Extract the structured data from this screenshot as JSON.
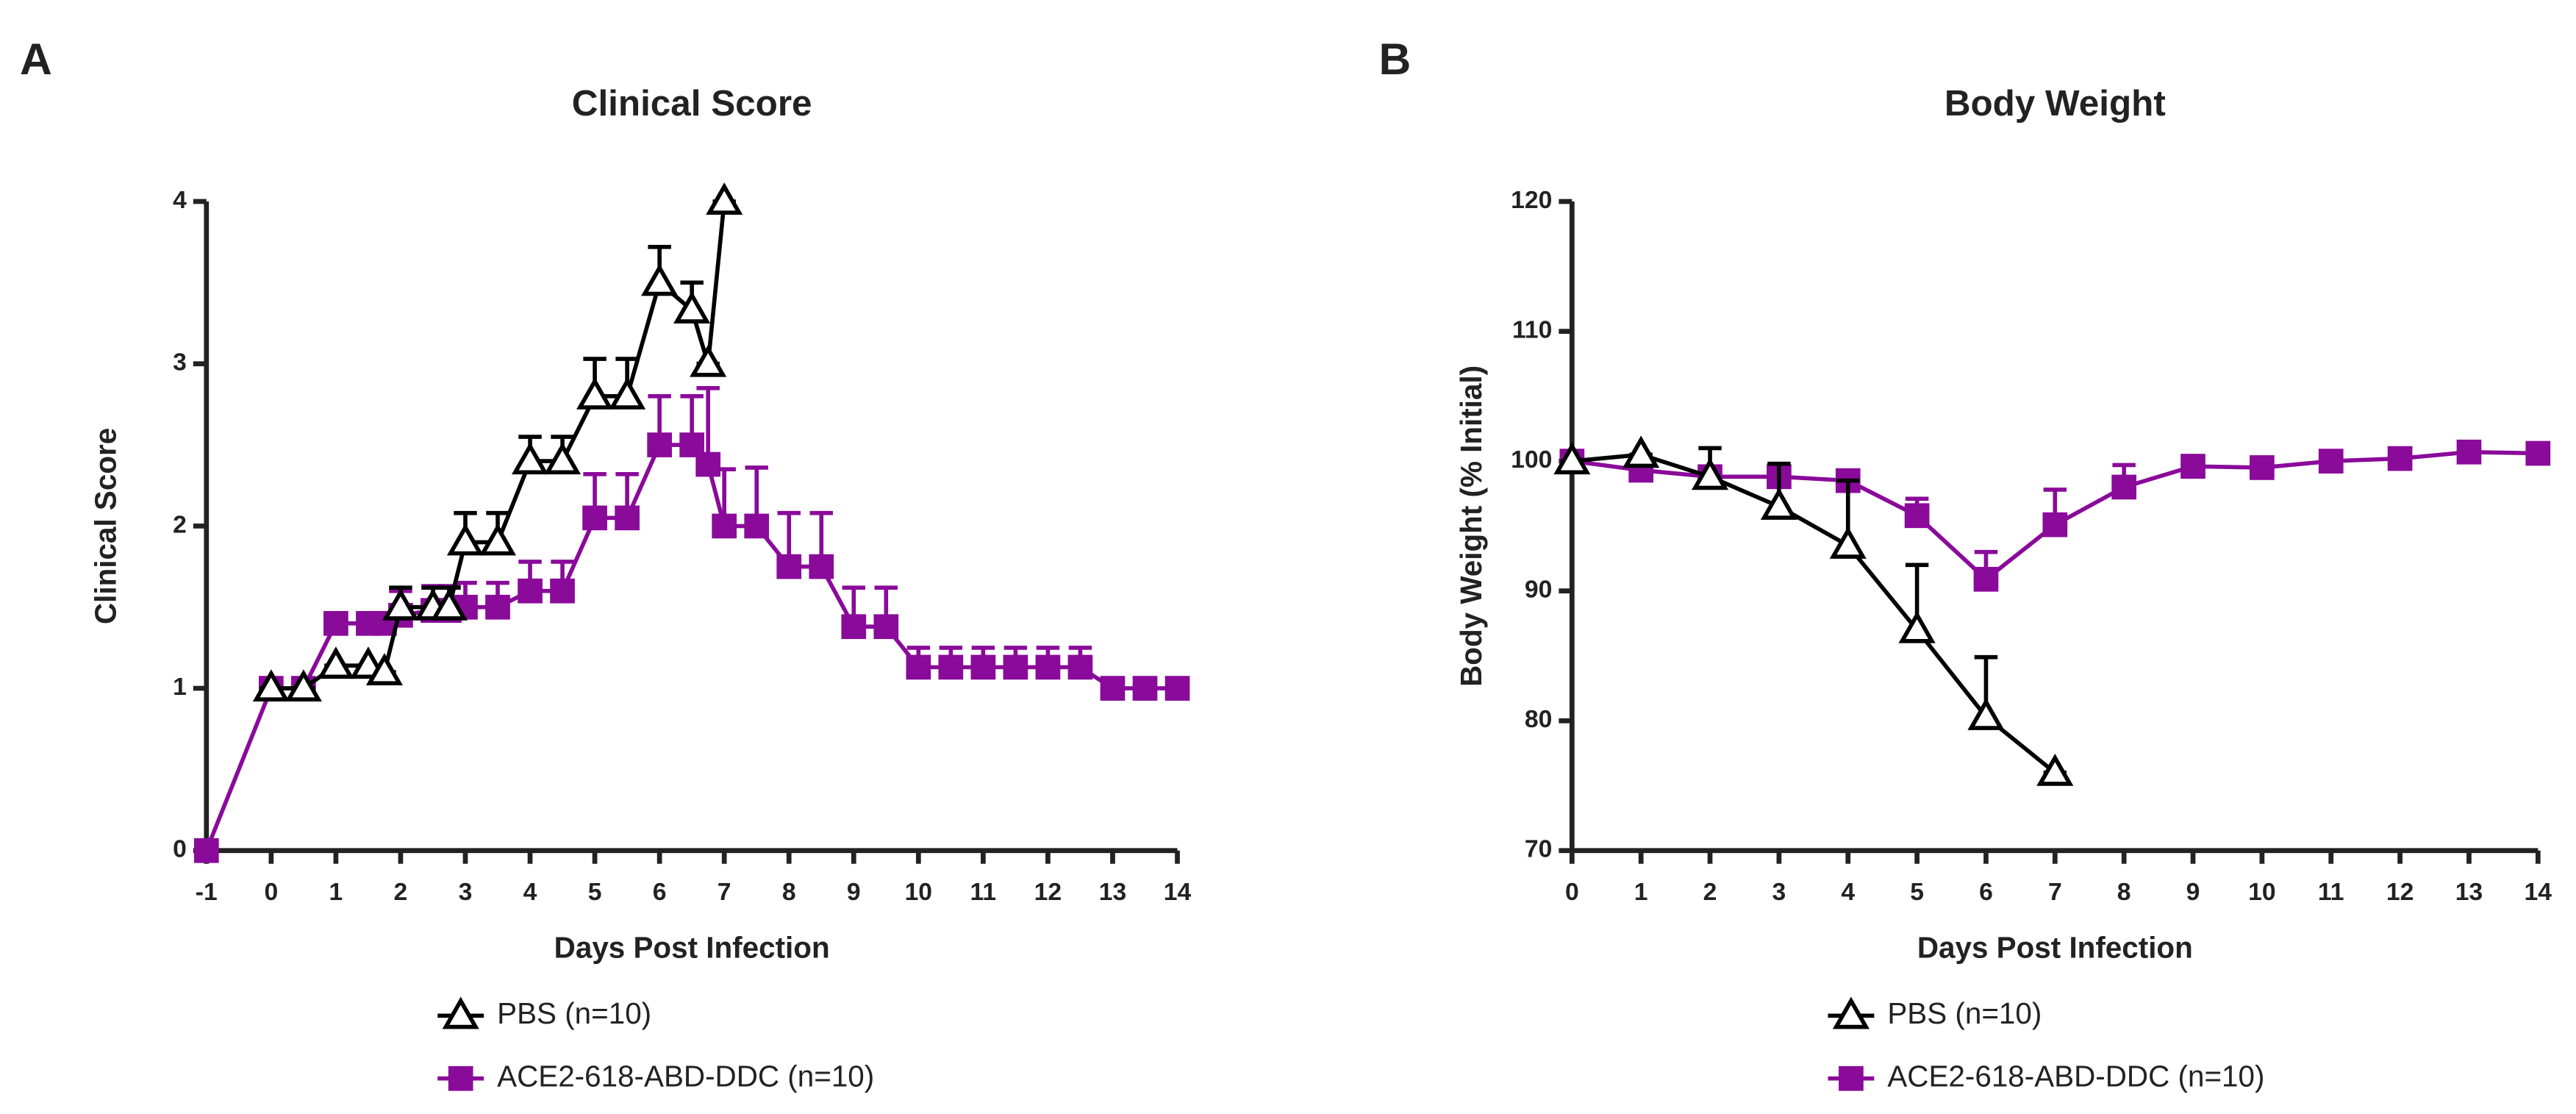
{
  "chart_data": [
    {
      "type": "line",
      "panel": "A",
      "title": "Clinical Score",
      "x_label": "Days Post Infection",
      "y_label": "Clinical Score",
      "x": [
        -1,
        0,
        0.5,
        1,
        1.5,
        1.75,
        2,
        2.5,
        2.75,
        3,
        3.5,
        4,
        4.5,
        5,
        5.5,
        6,
        6.5,
        6.75,
        7,
        7.5,
        8,
        8.5,
        9,
        9.5,
        10,
        10.5,
        11,
        11.5,
        12,
        12.5,
        13,
        13.5,
        14
      ],
      "xlim": [
        -1,
        14
      ],
      "xticks": [
        -1,
        0,
        1,
        2,
        3,
        4,
        5,
        6,
        7,
        8,
        9,
        10,
        11,
        12,
        13,
        14
      ],
      "ylim": [
        0,
        4
      ],
      "yticks": [
        0,
        1,
        2,
        3,
        4
      ],
      "series": [
        {
          "name": "PBS (n=10)",
          "color": "#000000",
          "marker": "triangle",
          "values": [
            null,
            1,
            1,
            1.14,
            1.14,
            1.1,
            1.5,
            1.5,
            1.5,
            1.9,
            1.9,
            2.4,
            2.4,
            2.8,
            2.8,
            3.5,
            3.33,
            3.0,
            4.0,
            null,
            null,
            null,
            null,
            null,
            null,
            null,
            null,
            null,
            null,
            null,
            null,
            null,
            null
          ],
          "errors": [
            null,
            0,
            0,
            0,
            0,
            0,
            0.12,
            0.12,
            0.12,
            0.18,
            0.18,
            0.15,
            0.15,
            0.23,
            0.23,
            0.22,
            0.17,
            0,
            0,
            null,
            null,
            null,
            null,
            null,
            null,
            null,
            null,
            null,
            null,
            null,
            null,
            null,
            null
          ]
        },
        {
          "name": "ACE2-618-ABD-DDC (n=10)",
          "color": "#8a0a9a",
          "marker": "square",
          "values": [
            0,
            1,
            1,
            1.4,
            1.4,
            1.4,
            1.45,
            1.48,
            1.48,
            1.5,
            1.5,
            1.6,
            1.6,
            2.05,
            2.05,
            2.5,
            2.5,
            2.38,
            2.0,
            2.0,
            1.75,
            1.75,
            1.38,
            1.38,
            1.13,
            1.13,
            1.13,
            1.13,
            1.13,
            1.13,
            1.0,
            1.0,
            1.0
          ],
          "errors": [
            0,
            0,
            0,
            0,
            0,
            0,
            0.15,
            0.15,
            0.15,
            0.15,
            0.15,
            0.18,
            0.18,
            0.27,
            0.27,
            0.3,
            0.3,
            0.47,
            0.35,
            0.36,
            0.33,
            0.33,
            0.24,
            0.24,
            0.12,
            0.12,
            0.12,
            0.12,
            0.12,
            0.12,
            0,
            0,
            0
          ]
        }
      ]
    },
    {
      "type": "line",
      "panel": "B",
      "title": "Body Weight",
      "x_label": "Days Post Infection",
      "y_label": "Body Weight (% Initial)",
      "x": [
        0,
        1,
        2,
        3,
        4,
        5,
        6,
        7,
        8,
        9,
        10,
        11,
        12,
        13,
        14
      ],
      "xlim": [
        0,
        14
      ],
      "xticks": [
        0,
        1,
        2,
        3,
        4,
        5,
        6,
        7,
        8,
        9,
        10,
        11,
        12,
        13,
        14
      ],
      "ylim": [
        70,
        120
      ],
      "yticks": [
        70,
        80,
        90,
        100,
        110,
        120
      ],
      "series": [
        {
          "name": "PBS (n=10)",
          "color": "#000000",
          "marker": "triangle",
          "values": [
            100,
            100.5,
            98.8,
            96.5,
            93.5,
            87,
            80.3,
            76,
            null,
            null,
            null,
            null,
            null,
            null,
            null
          ],
          "errors": [
            0,
            0,
            2.2,
            3.3,
            5,
            5,
            4.6,
            0,
            null,
            null,
            null,
            null,
            null,
            null,
            null
          ]
        },
        {
          "name": "ACE2-618-ABD-DDC (n=10)",
          "color": "#8a0a9a",
          "marker": "square",
          "values": [
            100,
            99.3,
            98.8,
            98.8,
            98.5,
            95.8,
            90.9,
            95.1,
            98,
            99.6,
            99.5,
            100,
            100.2,
            100.7,
            100.6
          ],
          "errors": [
            0,
            0.3,
            0.3,
            0.8,
            0.7,
            1.3,
            2.1,
            2.7,
            1.7,
            0.8,
            0.3,
            0.3,
            0.3,
            0.3,
            0.3
          ]
        }
      ]
    }
  ]
}
